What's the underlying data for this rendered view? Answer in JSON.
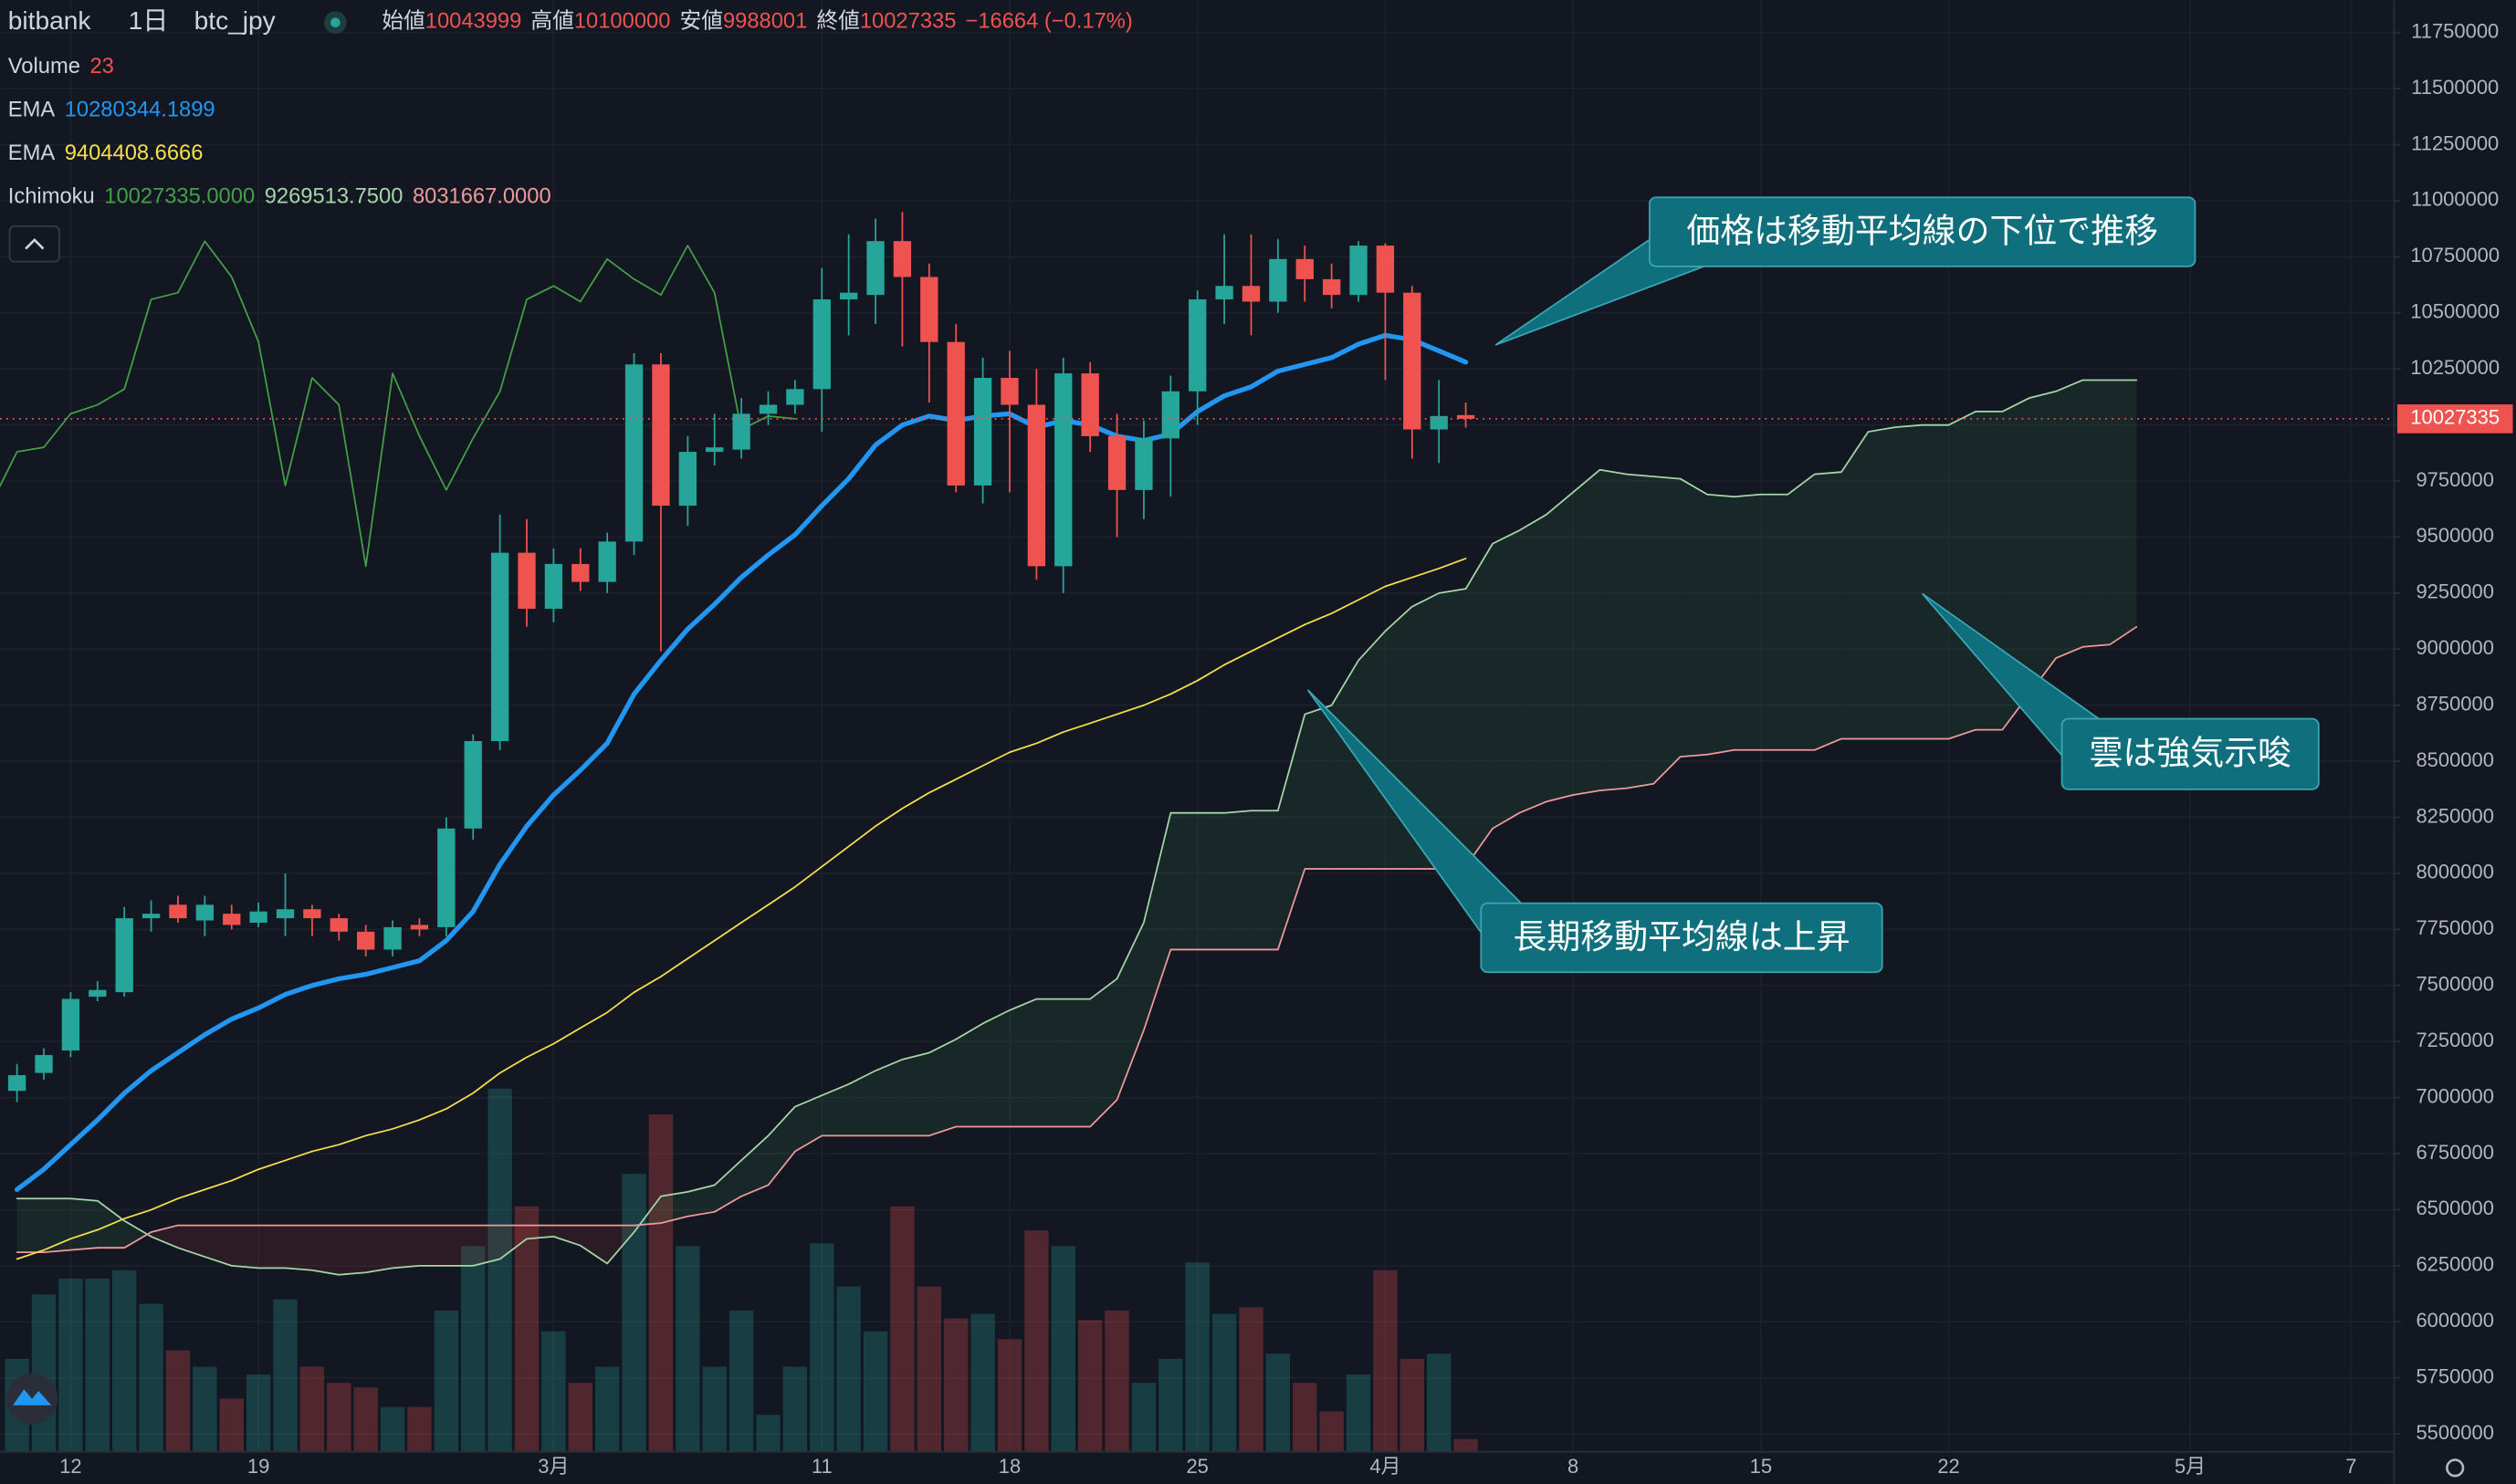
{
  "chart_data": {
    "type": "candlestick",
    "header": {
      "exchange": "bitbank",
      "interval": "1日",
      "pair": "btc_jpy",
      "ohlc_labels": [
        "始値",
        "高値",
        "安値",
        "終値"
      ],
      "change": "−16664 (−0.17%)"
    },
    "categories": [
      null,
      null,
      "12",
      null,
      null,
      null,
      null,
      null,
      null,
      "19",
      null,
      null,
      null,
      null,
      null,
      null,
      null,
      null,
      null,
      null,
      "3月",
      null,
      null,
      null,
      null,
      null,
      null,
      null,
      null,
      null,
      "11",
      null,
      null,
      null,
      null,
      null,
      null,
      "18",
      null,
      null,
      null,
      null,
      null,
      null,
      "25",
      null,
      null,
      null,
      null,
      null,
      null,
      "4月",
      null,
      null,
      null,
      null,
      null,
      null,
      "8",
      null,
      null,
      null,
      null,
      null,
      null,
      "15",
      null,
      null,
      null,
      null,
      null,
      null,
      "22",
      null,
      null,
      null,
      null,
      null,
      null,
      null,
      null,
      "5月",
      null,
      null,
      null,
      null,
      null,
      "7"
    ],
    "ylim": [
      5420000,
      11895000
    ],
    "yticks": [
      5500000,
      5750000,
      6000000,
      6250000,
      6500000,
      6750000,
      7000000,
      7250000,
      7500000,
      7750000,
      8000000,
      8250000,
      8500000,
      8750000,
      9000000,
      9250000,
      9500000,
      9750000,
      10000000,
      10250000,
      10500000,
      10750000,
      11000000,
      11250000,
      11500000,
      11750000
    ],
    "grid": true,
    "up_color": "#26a69a",
    "down_color": "#ef5350",
    "open": [
      7030000,
      7110000,
      7210000,
      7450000,
      7470000,
      7800000,
      7860000,
      7790000,
      7820000,
      7780000,
      7800000,
      7840000,
      7800000,
      7740000,
      7660000,
      7770000,
      7760000,
      8200000,
      8590000,
      9430000,
      9180000,
      9380000,
      9300000,
      9480000,
      10270000,
      9640000,
      9880000,
      9890000,
      10050000,
      10090000,
      10160000,
      10560000,
      10580000,
      10820000,
      10660000,
      10370000,
      9730000,
      10210000,
      10090000,
      9370000,
      10230000,
      9950000,
      9710000,
      9940000,
      10150000,
      10560000,
      10620000,
      10550000,
      10740000,
      10650000,
      10580000,
      10800000,
      10590000,
      9980000,
      10043999,
      null,
      null,
      null,
      null,
      null,
      null,
      null,
      null,
      null,
      null,
      null,
      null,
      null,
      null,
      null,
      null,
      null,
      null,
      null,
      null,
      null,
      null,
      null,
      null,
      null,
      null,
      null,
      null,
      null,
      null,
      null,
      null,
      null
    ],
    "high": [
      7150000,
      7220000,
      7470000,
      7520000,
      7850000,
      7880000,
      7900000,
      7900000,
      7860000,
      7870000,
      8000000,
      7860000,
      7820000,
      7770000,
      7790000,
      7800000,
      8250000,
      8620000,
      9600000,
      9580000,
      9450000,
      9450000,
      9520000,
      10320000,
      10320000,
      9950000,
      10050000,
      10120000,
      10150000,
      10200000,
      10700000,
      10850000,
      10920000,
      10950000,
      10720000,
      10450000,
      10300000,
      10330000,
      10250000,
      10300000,
      10280000,
      10050000,
      10020000,
      10220000,
      10600000,
      10850000,
      10850000,
      10830000,
      10800000,
      10720000,
      10820000,
      10810000,
      10620000,
      10200000,
      10100000,
      null,
      null,
      null,
      null,
      null,
      null,
      null,
      null,
      null,
      null,
      null,
      null,
      null,
      null,
      null,
      null,
      null,
      null,
      null,
      null,
      null,
      null,
      null,
      null,
      null,
      null,
      null,
      null,
      null,
      null,
      null,
      null,
      null
    ],
    "low": [
      6980000,
      7080000,
      7180000,
      7430000,
      7450000,
      7740000,
      7780000,
      7720000,
      7750000,
      7760000,
      7720000,
      7720000,
      7700000,
      7630000,
      7630000,
      7720000,
      7720000,
      8150000,
      8550000,
      9100000,
      9120000,
      9260000,
      9250000,
      9420000,
      8990000,
      9550000,
      9820000,
      9850000,
      10000000,
      10050000,
      9970000,
      10400000,
      10450000,
      10350000,
      10100000,
      9700000,
      9650000,
      9700000,
      9310000,
      9250000,
      9880000,
      9500000,
      9580000,
      9680000,
      10000000,
      10450000,
      10400000,
      10500000,
      10550000,
      10520000,
      10550000,
      10200000,
      9850000,
      9830000,
      9988001,
      null,
      null,
      null,
      null,
      null,
      null,
      null,
      null,
      null,
      null,
      null,
      null,
      null,
      null,
      null,
      null,
      null,
      null,
      null,
      null,
      null,
      null,
      null,
      null,
      null,
      null,
      null,
      null,
      null,
      null,
      null,
      null,
      null
    ],
    "close": [
      7100000,
      7190000,
      7440000,
      7480000,
      7800000,
      7820000,
      7800000,
      7860000,
      7770000,
      7830000,
      7840000,
      7800000,
      7740000,
      7660000,
      7760000,
      7750000,
      8200000,
      8590000,
      9430000,
      9180000,
      9380000,
      9300000,
      9480000,
      10270000,
      9640000,
      9880000,
      9900000,
      10050000,
      10090000,
      10160000,
      10560000,
      10590000,
      10820000,
      10660000,
      10370000,
      9730000,
      10210000,
      10090000,
      9370000,
      10230000,
      9950000,
      9710000,
      9940000,
      10150000,
      10560000,
      10620000,
      10550000,
      10740000,
      10650000,
      10580000,
      10800000,
      10590000,
      9980000,
      10040000,
      10027335,
      null,
      null,
      null,
      null,
      null,
      null,
      null,
      null,
      null,
      null,
      null,
      null,
      null,
      null,
      null,
      null,
      null,
      null,
      null,
      null,
      null,
      null,
      null,
      null,
      null,
      null,
      null,
      null,
      null,
      null,
      null,
      null,
      null
    ],
    "volume": {
      "name": "Volume",
      "ylim": [
        0,
        2590
      ],
      "values": [
        166,
        281,
        309,
        309,
        324,
        264,
        181,
        152,
        95,
        138,
        272,
        152,
        123,
        115,
        80,
        80,
        252,
        367,
        648,
        438,
        215,
        123,
        152,
        496,
        602,
        367,
        152,
        252,
        66,
        152,
        372,
        295,
        215,
        438,
        295,
        238,
        246,
        201,
        395,
        367,
        235,
        252,
        123,
        166,
        338,
        246,
        258,
        175,
        123,
        72,
        138,
        324,
        166,
        175,
        23,
        null,
        null,
        null,
        null,
        null,
        null,
        null,
        null,
        null,
        null,
        null,
        null,
        null,
        null,
        null,
        null,
        null,
        null,
        null,
        null,
        null,
        null,
        null,
        null,
        null,
        null,
        null,
        null,
        null,
        null,
        null,
        null,
        null
      ]
    },
    "ema": [
      {
        "name": "EMA",
        "color": "#2196f3",
        "values": [
          6590000,
          6680000,
          6790000,
          6900000,
          7020000,
          7120000,
          7200000,
          7280000,
          7350000,
          7400000,
          7460000,
          7500000,
          7530000,
          7550000,
          7580000,
          7610000,
          7700000,
          7830000,
          8040000,
          8210000,
          8350000,
          8460000,
          8580000,
          8800000,
          8950000,
          9090000,
          9200000,
          9320000,
          9420000,
          9510000,
          9640000,
          9760000,
          9910000,
          10000000,
          10040000,
          10020000,
          10040000,
          10050000,
          9990000,
          10020000,
          10000000,
          9950000,
          9930000,
          9960000,
          10060000,
          10130000,
          10170000,
          10240000,
          10270000,
          10300000,
          10360000,
          10400000,
          10380000,
          10330000,
          10280344.1899,
          null,
          null,
          null,
          null,
          null,
          null,
          null,
          null,
          null,
          null,
          null,
          null,
          null,
          null,
          null,
          null,
          null,
          null,
          null,
          null,
          null,
          null,
          null,
          null,
          null,
          null,
          null,
          null,
          null,
          null,
          null,
          null,
          null
        ]
      },
      {
        "name": "EMA",
        "color": "#f5e04c",
        "values": [
          6280000,
          6320000,
          6370000,
          6410000,
          6460000,
          6500000,
          6550000,
          6590000,
          6630000,
          6680000,
          6720000,
          6760000,
          6790000,
          6830000,
          6860000,
          6900000,
          6950000,
          7020000,
          7110000,
          7180000,
          7240000,
          7310000,
          7380000,
          7470000,
          7540000,
          7620000,
          7700000,
          7780000,
          7860000,
          7940000,
          8030000,
          8120000,
          8210000,
          8290000,
          8360000,
          8420000,
          8480000,
          8540000,
          8580000,
          8630000,
          8670000,
          8710000,
          8750000,
          8800000,
          8860000,
          8930000,
          8990000,
          9050000,
          9110000,
          9160000,
          9220000,
          9280000,
          9320000,
          9360000,
          9404408.6666,
          null,
          null,
          null,
          null,
          null,
          null,
          null,
          null,
          null,
          null,
          null,
          null,
          null,
          null,
          null,
          null,
          null,
          null,
          null,
          null,
          null,
          null,
          null,
          null,
          null,
          null,
          null,
          null,
          null,
          null,
          null,
          null,
          null
        ]
      }
    ],
    "ichimoku": {
      "name": "Ichimoku",
      "value_labels": [
        "10027335.0000",
        "9269513.7500",
        "8031667.0000"
      ],
      "lagging_shift": 25,
      "lagging_color": "#43a047",
      "cloud_colors": [
        "#4caf501c",
        "#f443361c"
      ],
      "span_a": {
        "color": "#a5d6a7",
        "values": [
          6550000,
          6550000,
          6550000,
          6540000,
          6450000,
          6380000,
          6330000,
          6290000,
          6250000,
          6240000,
          6240000,
          6230000,
          6210000,
          6220000,
          6240000,
          6250000,
          6250000,
          6250000,
          6280000,
          6370000,
          6380000,
          6340000,
          6260000,
          6400000,
          6560000,
          6580000,
          6610000,
          6720000,
          6830000,
          6960000,
          7010000,
          7060000,
          7120000,
          7170000,
          7200000,
          7260000,
          7330000,
          7390000,
          7440000,
          7440000,
          7440000,
          7530000,
          7780000,
          8270000,
          8270000,
          8270000,
          8280000,
          8280000,
          8710000,
          8750000,
          8950000,
          9080000,
          9190000,
          9250000,
          9269513.75,
          9470000,
          9530000,
          9600000,
          9700000,
          9800000,
          9780000,
          9770000,
          9760000,
          9690000,
          9680000,
          9690000,
          9690000,
          9780000,
          9790000,
          9970000,
          9990000,
          10000000,
          10000000,
          10060000,
          10060000,
          10120000,
          10150000,
          10200000,
          10200000,
          10200000,
          null,
          null,
          null,
          null,
          null,
          null,
          null,
          null
        ]
      },
      "span_b": {
        "color": "#ef9a9a",
        "values": [
          6310000,
          6310000,
          6320000,
          6330000,
          6330000,
          6400000,
          6430000,
          6430000,
          6430000,
          6430000,
          6430000,
          6430000,
          6430000,
          6430000,
          6430000,
          6430000,
          6430000,
          6430000,
          6430000,
          6430000,
          6430000,
          6430000,
          6430000,
          6430000,
          6440000,
          6470000,
          6490000,
          6560000,
          6610000,
          6760000,
          6830000,
          6830000,
          6830000,
          6830000,
          6830000,
          6870000,
          6870000,
          6870000,
          6870000,
          6870000,
          6870000,
          6990000,
          7300000,
          7660000,
          7660000,
          7660000,
          7660000,
          7660000,
          8020000,
          8020000,
          8020000,
          8020000,
          8020000,
          8020000,
          8031667,
          8200000,
          8270000,
          8320000,
          8350000,
          8370000,
          8380000,
          8400000,
          8520000,
          8530000,
          8550000,
          8550000,
          8550000,
          8550000,
          8600000,
          8600000,
          8600000,
          8600000,
          8600000,
          8640000,
          8640000,
          8800000,
          8960000,
          9010000,
          9020000,
          9100000,
          null,
          null,
          null,
          null,
          null,
          null,
          null,
          null
        ]
      }
    },
    "annotations": [
      "価格は移動平均線の下位で推移",
      "雲は強気示唆",
      "長期移動平均線は上昇"
    ]
  }
}
